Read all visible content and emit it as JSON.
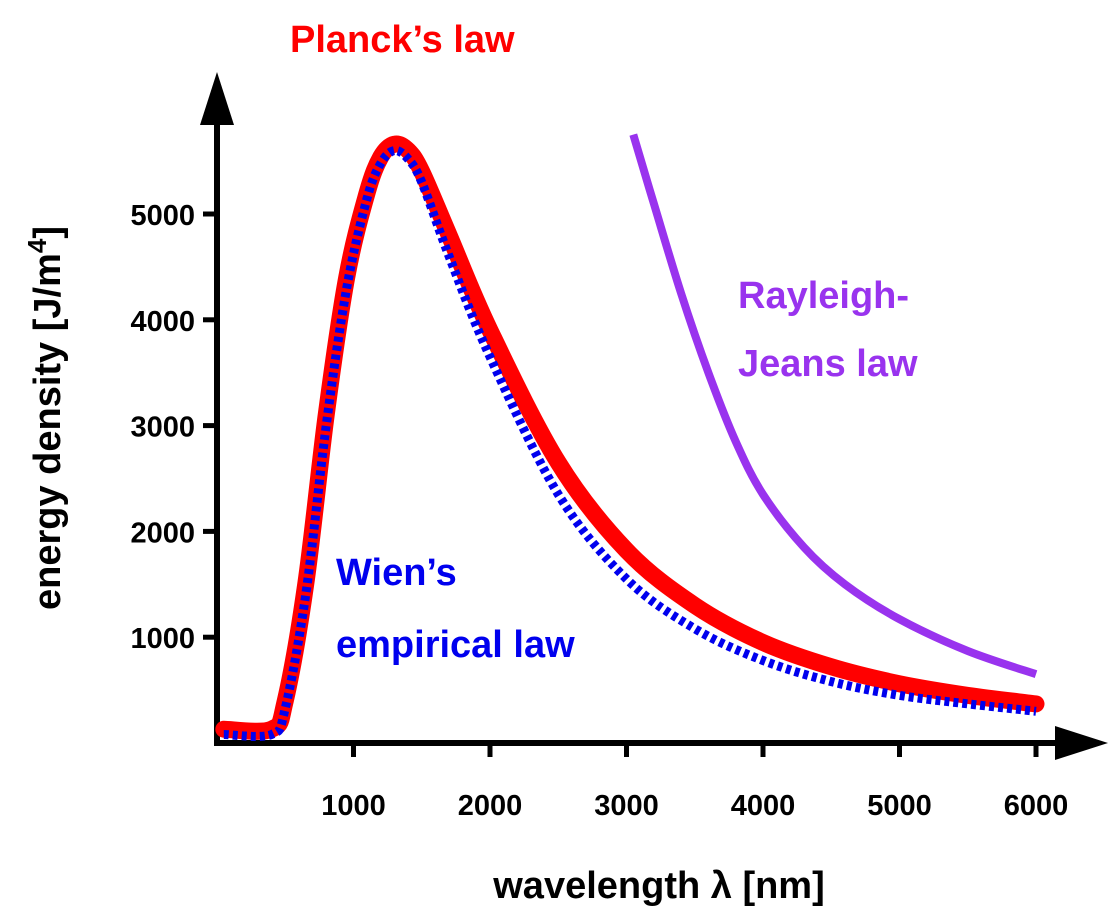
{
  "chart_data": {
    "type": "line",
    "xlabel": "wavelength λ [nm]",
    "ylabel": "energy density [J/m⁴]",
    "ylabel_main": "energy density [J/m",
    "ylabel_sup": "4",
    "ylabel_end": "]",
    "xlim": [
      0,
      6000
    ],
    "ylim": [
      0,
      5700
    ],
    "x_ticks": [
      1000,
      2000,
      3000,
      4000,
      5000,
      6000
    ],
    "y_ticks": [
      1000,
      2000,
      3000,
      4000,
      5000
    ],
    "grid": false,
    "series": [
      {
        "name": "Planck's law",
        "label_lines": [
          "Planck’s law"
        ],
        "color": "#ff0000",
        "style": "solid-thick",
        "points": [
          [
            50,
            130
          ],
          [
            400,
            130
          ],
          [
            500,
            400
          ],
          [
            650,
            1500
          ],
          [
            800,
            3100
          ],
          [
            950,
            4400
          ],
          [
            1100,
            5200
          ],
          [
            1200,
            5540
          ],
          [
            1300,
            5660
          ],
          [
            1400,
            5600
          ],
          [
            1500,
            5400
          ],
          [
            1700,
            4800
          ],
          [
            2000,
            3900
          ],
          [
            2500,
            2650
          ],
          [
            3000,
            1820
          ],
          [
            3500,
            1300
          ],
          [
            4000,
            950
          ],
          [
            4500,
            720
          ],
          [
            5000,
            560
          ],
          [
            5500,
            450
          ],
          [
            6000,
            370
          ]
        ]
      },
      {
        "name": "Wien's empirical law",
        "label_lines": [
          "Wien’s",
          "empirical law"
        ],
        "color": "#0000ee",
        "style": "dotted",
        "points": [
          [
            50,
            80
          ],
          [
            400,
            80
          ],
          [
            500,
            330
          ],
          [
            650,
            1400
          ],
          [
            800,
            3000
          ],
          [
            950,
            4300
          ],
          [
            1100,
            5150
          ],
          [
            1200,
            5480
          ],
          [
            1300,
            5600
          ],
          [
            1400,
            5520
          ],
          [
            1500,
            5300
          ],
          [
            1700,
            4600
          ],
          [
            2000,
            3650
          ],
          [
            2500,
            2350
          ],
          [
            3000,
            1550
          ],
          [
            3500,
            1080
          ],
          [
            4000,
            780
          ],
          [
            4500,
            580
          ],
          [
            5000,
            450
          ],
          [
            5500,
            370
          ],
          [
            6000,
            300
          ]
        ]
      },
      {
        "name": "Rayleigh-Jeans law",
        "label_lines": [
          "Rayleigh-",
          "Jeans law"
        ],
        "color": "#9933ee",
        "style": "solid",
        "points": [
          [
            3050,
            5750
          ],
          [
            3200,
            5100
          ],
          [
            3400,
            4250
          ],
          [
            3600,
            3500
          ],
          [
            3800,
            2850
          ],
          [
            4000,
            2350
          ],
          [
            4300,
            1850
          ],
          [
            4600,
            1500
          ],
          [
            5000,
            1170
          ],
          [
            5500,
            870
          ],
          [
            6000,
            650
          ]
        ]
      }
    ]
  }
}
